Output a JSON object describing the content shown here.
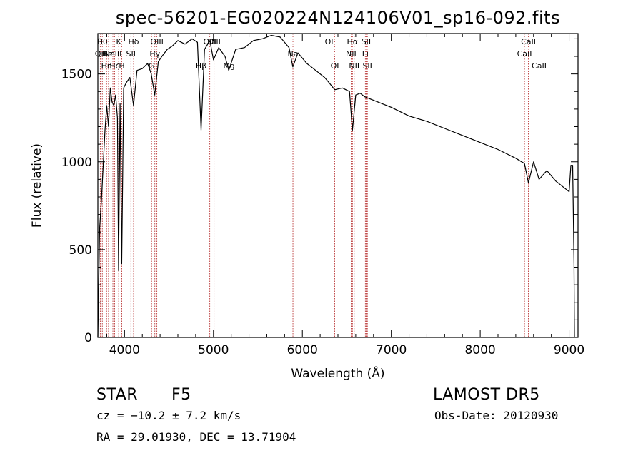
{
  "chart_data": {
    "type": "line",
    "title": "spec-56201-EG020224N124106V01_sp16-092.fits",
    "xlabel": "Wavelength (Å)",
    "ylabel": "Flux (relative)",
    "xlim": [
      3700,
      9100
    ],
    "ylim": [
      0,
      1730
    ],
    "xticks": [
      4000,
      5000,
      6000,
      7000,
      8000,
      9000
    ],
    "yticks": [
      0,
      500,
      1000,
      1500
    ],
    "grid": false,
    "line_color": "#000000",
    "marker_color": "#b22222",
    "series": [
      {
        "x": [
          3700,
          3720,
          3740,
          3760,
          3780,
          3800,
          3820,
          3840,
          3860,
          3880,
          3900,
          3920,
          3933,
          3950,
          3968,
          3990,
          4020,
          4060,
          4101,
          4140,
          4200,
          4260,
          4300,
          4340,
          4380,
          4420,
          4480,
          4540,
          4600,
          4680,
          4760,
          4820,
          4861,
          4900,
          4960,
          5000,
          5060,
          5130,
          5172,
          5250,
          5350,
          5450,
          5550,
          5650,
          5750,
          5850,
          5893,
          5950,
          6050,
          6150,
          6250,
          6300,
          6363,
          6450,
          6530,
          6563,
          6600,
          6650,
          6700,
          6800,
          7000,
          7200,
          7400,
          7600,
          7800,
          8000,
          8200,
          8400,
          8498,
          8542,
          8600,
          8662,
          8750,
          8850,
          8950,
          9000,
          9020,
          9040,
          9055,
          9060
        ],
        "y": [
          0,
          620,
          780,
          980,
          1180,
          1320,
          1200,
          1420,
          1340,
          1320,
          1380,
          1250,
          380,
          1330,
          420,
          1420,
          1450,
          1480,
          1320,
          1520,
          1530,
          1560,
          1500,
          1380,
          1570,
          1600,
          1640,
          1660,
          1690,
          1670,
          1700,
          1680,
          1180,
          1640,
          1690,
          1580,
          1650,
          1600,
          1520,
          1640,
          1650,
          1690,
          1700,
          1720,
          1710,
          1650,
          1540,
          1620,
          1560,
          1520,
          1480,
          1450,
          1410,
          1420,
          1400,
          1180,
          1380,
          1390,
          1370,
          1350,
          1310,
          1260,
          1230,
          1190,
          1150,
          1110,
          1070,
          1020,
          990,
          880,
          1000,
          900,
          950,
          890,
          850,
          830,
          980,
          980,
          420,
          0
        ]
      }
    ],
    "lines": [
      {
        "x": 3727,
        "label": "OII",
        "row": 2
      },
      {
        "x": 3750,
        "label": "Hθ",
        "row": 1
      },
      {
        "x": 3798,
        "label": "Hη",
        "row": 3
      },
      {
        "x": 3820,
        "label": "HeI",
        "row": 2
      },
      {
        "x": 3869,
        "label": "NeIII",
        "row": 2
      },
      {
        "x": 3889,
        "label": "Hζ",
        "row": 3
      },
      {
        "x": 3934,
        "label": "K",
        "row": 1
      },
      {
        "x": 3969,
        "label": "H",
        "row": 3
      },
      {
        "x": 4072,
        "label": "SII",
        "row": 2
      },
      {
        "x": 4102,
        "label": "Hδ",
        "row": 1
      },
      {
        "x": 4304,
        "label": "G",
        "row": 3
      },
      {
        "x": 4341,
        "label": "Hγ",
        "row": 2
      },
      {
        "x": 4364,
        "label": "OIII",
        "row": 1
      },
      {
        "x": 4861,
        "label": "Hβ",
        "row": 3
      },
      {
        "x": 4959,
        "label": "OIII",
        "row": 1
      },
      {
        "x": 5007,
        "label": "OIII",
        "row": 1
      },
      {
        "x": 5175,
        "label": "Mg",
        "row": 3
      },
      {
        "x": 5894,
        "label": "Na",
        "row": 2
      },
      {
        "x": 6300,
        "label": "OI",
        "row": 1
      },
      {
        "x": 6364,
        "label": "OI",
        "row": 3
      },
      {
        "x": 6548,
        "label": "NII",
        "row": 2
      },
      {
        "x": 6563,
        "label": "Hα",
        "row": 1
      },
      {
        "x": 6583,
        "label": "NII",
        "row": 3
      },
      {
        "x": 6708,
        "label": "Li",
        "row": 2
      },
      {
        "x": 6717,
        "label": "SII",
        "row": 1
      },
      {
        "x": 6731,
        "label": "SII",
        "row": 3
      },
      {
        "x": 8498,
        "label": "CaII",
        "row": 2
      },
      {
        "x": 8542,
        "label": "CaII",
        "row": 1
      },
      {
        "x": 8662,
        "label": "CaII",
        "row": 3
      }
    ]
  },
  "info": {
    "class_label": "STAR",
    "subclass": "F5",
    "survey": "LAMOST DR5",
    "cz": "cz = −10.2 ± 7.2 km/s",
    "obs_date": "Obs-Date: 20120930",
    "coords": "RA =  29.01930, DEC =  13.71904"
  }
}
